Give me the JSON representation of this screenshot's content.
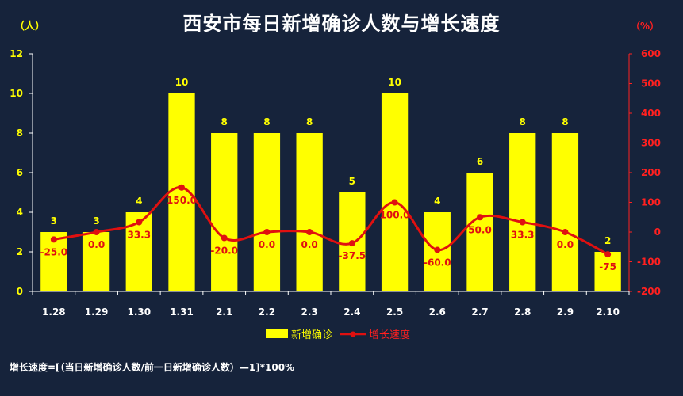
{
  "chart_data": {
    "type": "bar",
    "title": "西安市每日新增确诊人数与增长速度",
    "left_unit": "（人）",
    "right_unit": "（%）",
    "categories": [
      "1.28",
      "1.29",
      "1.30",
      "1.31",
      "2.1",
      "2.2",
      "2.3",
      "2.4",
      "2.5",
      "2.6",
      "2.7",
      "2.8",
      "2.9",
      "2.10"
    ],
    "series": [
      {
        "name": "新增确诊",
        "type": "bar",
        "axis": "left",
        "values": [
          3,
          3,
          4,
          10,
          8,
          8,
          8,
          5,
          10,
          4,
          6,
          8,
          8,
          2
        ],
        "labels": [
          "3",
          "3",
          "4",
          "10",
          "8",
          "8",
          "8",
          "5",
          "10",
          "4",
          "6",
          "8",
          "8",
          "2"
        ]
      },
      {
        "name": "增长速度",
        "type": "line",
        "axis": "right",
        "values": [
          -25.0,
          0.0,
          33.3,
          150.0,
          -20.0,
          0.0,
          0.0,
          -37.5,
          100.0,
          -60.0,
          50.0,
          33.3,
          0.0,
          -75
        ],
        "labels": [
          "-25.0",
          "0.0",
          "33.3",
          "150.0",
          "-20.0",
          "0.0",
          "0.0",
          "-37.5",
          "100.0",
          "-60.0",
          "50.0",
          "33.3",
          "0.0",
          "-75"
        ]
      }
    ],
    "ylim_left": [
      0,
      12
    ],
    "yticks_left": [
      "0",
      "2",
      "4",
      "6",
      "8",
      "10",
      "12"
    ],
    "ylim_right": [
      -200,
      600
    ],
    "yticks_right": [
      "-200",
      "-100",
      "0",
      "100",
      "200",
      "300",
      "400",
      "500",
      "600"
    ],
    "grid": false,
    "legend_position": "bottom",
    "colors": {
      "bar": "#ffff00",
      "line": "#e01010",
      "background": "#16233b",
      "right_axis": "#ff2020"
    }
  },
  "footnote": "增长速度=[（当日新增确诊人数/前一日新增确诊人数）—1]*100%"
}
